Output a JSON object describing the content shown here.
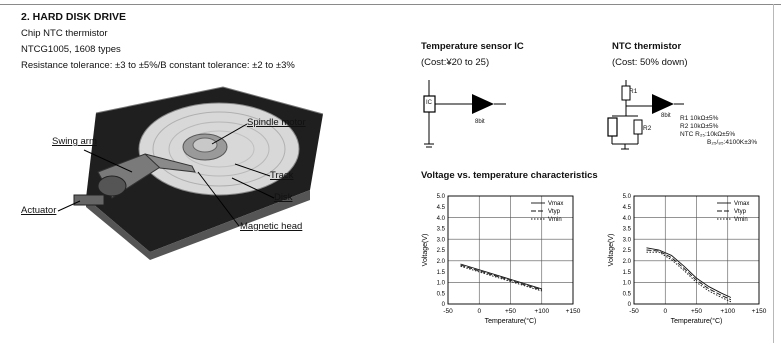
{
  "section": {
    "title": "2. HARD DISK DRIVE",
    "part": "Chip NTC thermistor",
    "types": "NTCG1005, 1608 types",
    "tolerance": "Resistance tolerance: ±3 to ±5%/B constant tolerance: ±2 to ±3%"
  },
  "hdd_labels": {
    "swing_arm": "Swing arm",
    "spindle_motor": "Spindle motor",
    "track": "Track",
    "disk": "Disk",
    "actuator": "Actuator",
    "magnetic_head": "Magnetic head"
  },
  "sensor_ic": {
    "title": "Temperature sensor IC",
    "cost": "(Cost:¥20 to 25)",
    "ic_label": "IC",
    "out_label": "8bit"
  },
  "ntc": {
    "title": "NTC thermistor",
    "cost": "(Cost: 50% down)",
    "r1": "R1",
    "r2": "R2",
    "out_label": "8bit",
    "spec_lines": [
      "R1 10kΩ±5%",
      "R2 10kΩ±5%",
      "NTC  R₂₅:10kΩ±5%",
      "B₂₅/₈₅:4100K±3%"
    ]
  },
  "charts_heading": "Voltage vs. temperature  characteristics",
  "chart_data": [
    {
      "type": "line",
      "xlabel": "Temperature(°C)",
      "ylabel": "Voltage(V)",
      "xlim": [
        -50,
        150
      ],
      "ylim": [
        0,
        5
      ],
      "xticks": [
        "-50",
        "0",
        "+50",
        "+100",
        "+150"
      ],
      "yticks": [
        "0",
        "0.5",
        "1.0",
        "1.5",
        "2.0",
        "2.5",
        "3.0",
        "3.5",
        "4.0",
        "4.5",
        "5.0"
      ],
      "grid": true,
      "legend": "top-right",
      "series": [
        {
          "name": "Vmax",
          "x": [
            -30,
            100
          ],
          "y": [
            1.85,
            0.7
          ]
        },
        {
          "name": "Vtyp",
          "x": [
            -30,
            100
          ],
          "y": [
            1.8,
            0.65
          ]
        },
        {
          "name": "Vmin",
          "x": [
            -30,
            100
          ],
          "y": [
            1.75,
            0.6
          ]
        }
      ]
    },
    {
      "type": "line",
      "xlabel": "Temperature(°C)",
      "ylabel": "Voltage(V)",
      "xlim": [
        -50,
        150
      ],
      "ylim": [
        0,
        5
      ],
      "xticks": [
        "-50",
        "0",
        "+50",
        "+100",
        "+150"
      ],
      "yticks": [
        "0",
        "0.5",
        "1.0",
        "1.5",
        "2.0",
        "2.5",
        "3.0",
        "3.5",
        "4.0",
        "4.5",
        "5.0"
      ],
      "grid": true,
      "legend": "top-right",
      "series": [
        {
          "name": "Vmax",
          "x": [
            -30,
            -10,
            10,
            30,
            50,
            70,
            90,
            105
          ],
          "y": [
            2.6,
            2.5,
            2.25,
            1.75,
            1.2,
            0.8,
            0.5,
            0.3
          ]
        },
        {
          "name": "Vtyp",
          "x": [
            -30,
            -10,
            10,
            30,
            50,
            70,
            90,
            105
          ],
          "y": [
            2.5,
            2.45,
            2.15,
            1.65,
            1.1,
            0.7,
            0.4,
            0.2
          ]
        },
        {
          "name": "Vmin",
          "x": [
            -30,
            -10,
            10,
            30,
            50,
            70,
            90,
            105
          ],
          "y": [
            2.4,
            2.4,
            2.05,
            1.55,
            1.0,
            0.6,
            0.3,
            0.1
          ]
        }
      ]
    }
  ]
}
